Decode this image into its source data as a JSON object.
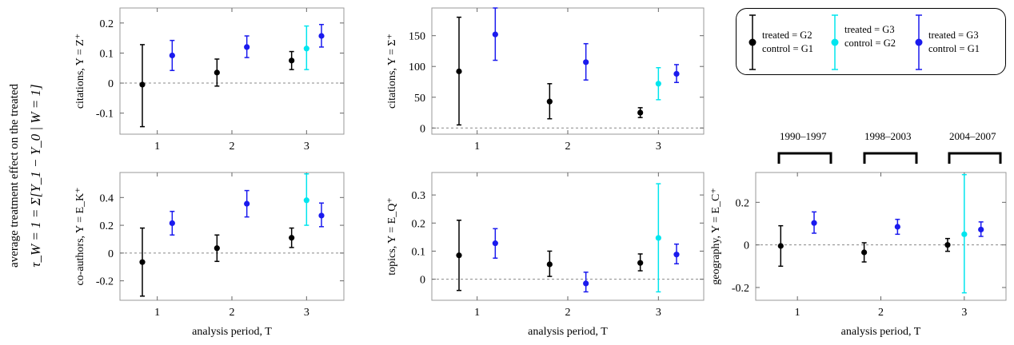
{
  "overall_ylabel_main": "average treatment effect on the treated",
  "overall_ylabel_formula": "τ_W = 1 = Σ[Y_1 − Y_0 | W = 1]",
  "legend": {
    "entries": [
      {
        "line1": "treated = G2",
        "line2": "control = G1",
        "color": "#000000"
      },
      {
        "line1": "treated = G3",
        "line2": "control = G2",
        "color": "#00e5ee"
      },
      {
        "line1": "treated = G3",
        "line2": "control = G1",
        "color": "#1a1aee"
      }
    ]
  },
  "periods": [
    {
      "label": "1990–1997"
    },
    {
      "label": "1998–2003"
    },
    {
      "label": "2004–2007"
    }
  ],
  "colors": {
    "G2vG1": "#000000",
    "G3vG2": "#00e5ee",
    "G3vG1": "#1a1aee",
    "zero_line": "#888888"
  },
  "chart_data": [
    {
      "type": "scatter",
      "ylabel": "citations, Y = Z⁺",
      "xlabel": "",
      "xticks": [
        1,
        2,
        3
      ],
      "yticks": [
        -0.1,
        0,
        0.1,
        0.2
      ],
      "ytick_labels": [
        "-0.1",
        "0",
        "0.1",
        "0.2"
      ],
      "xlim": [
        0.5,
        3.5
      ],
      "ylim": [
        -0.17,
        0.25
      ],
      "series": [
        {
          "key": "G2vG1",
          "points": [
            {
              "x": 0.8,
              "y": -0.005,
              "lo": -0.145,
              "hi": 0.128
            },
            {
              "x": 1.8,
              "y": 0.035,
              "lo": -0.01,
              "hi": 0.08
            },
            {
              "x": 2.8,
              "y": 0.075,
              "lo": 0.045,
              "hi": 0.105
            }
          ]
        },
        {
          "key": "G3vG2",
          "points": [
            {
              "x": 3.0,
              "y": 0.115,
              "lo": 0.045,
              "hi": 0.19
            }
          ]
        },
        {
          "key": "G3vG1",
          "points": [
            {
              "x": 1.2,
              "y": 0.092,
              "lo": 0.042,
              "hi": 0.142
            },
            {
              "x": 2.2,
              "y": 0.12,
              "lo": 0.085,
              "hi": 0.157
            },
            {
              "x": 3.2,
              "y": 0.157,
              "lo": 0.12,
              "hi": 0.195
            }
          ]
        }
      ]
    },
    {
      "type": "scatter",
      "ylabel": "citations, Y = Σ⁺",
      "xlabel": "",
      "xticks": [
        1,
        2,
        3
      ],
      "yticks": [
        0,
        50,
        100,
        150
      ],
      "ytick_labels": [
        "0",
        "50",
        "100",
        "150"
      ],
      "xlim": [
        0.5,
        3.5
      ],
      "ylim": [
        -10,
        195
      ],
      "series": [
        {
          "key": "G2vG1",
          "points": [
            {
              "x": 0.8,
              "y": 92,
              "lo": 5,
              "hi": 180
            },
            {
              "x": 1.8,
              "y": 43,
              "lo": 15,
              "hi": 72
            },
            {
              "x": 2.8,
              "y": 25,
              "lo": 17,
              "hi": 33
            }
          ]
        },
        {
          "key": "G3vG2",
          "points": [
            {
              "x": 3.0,
              "y": 72,
              "lo": 46,
              "hi": 98
            }
          ]
        },
        {
          "key": "G3vG1",
          "points": [
            {
              "x": 1.2,
              "y": 152,
              "lo": 110,
              "hi": 195
            },
            {
              "x": 2.2,
              "y": 107,
              "lo": 78,
              "hi": 137
            },
            {
              "x": 3.2,
              "y": 88,
              "lo": 74,
              "hi": 103
            }
          ]
        }
      ]
    },
    {
      "type": "scatter",
      "ylabel": "co-authors, Y = E_K⁺",
      "xlabel": "analysis period, T",
      "xticks": [
        1,
        2,
        3
      ],
      "yticks": [
        -0.2,
        0,
        0.2,
        0.4
      ],
      "ytick_labels": [
        "-0.2",
        "0",
        "0.2",
        "0.4"
      ],
      "xlim": [
        0.5,
        3.5
      ],
      "ylim": [
        -0.34,
        0.58
      ],
      "series": [
        {
          "key": "G2vG1",
          "points": [
            {
              "x": 0.8,
              "y": -0.065,
              "lo": -0.31,
              "hi": 0.18
            },
            {
              "x": 1.8,
              "y": 0.035,
              "lo": -0.06,
              "hi": 0.13
            },
            {
              "x": 2.8,
              "y": 0.11,
              "lo": 0.04,
              "hi": 0.18
            }
          ]
        },
        {
          "key": "G3vG2",
          "points": [
            {
              "x": 3.0,
              "y": 0.38,
              "lo": 0.2,
              "hi": 0.57
            }
          ]
        },
        {
          "key": "G3vG1",
          "points": [
            {
              "x": 1.2,
              "y": 0.215,
              "lo": 0.13,
              "hi": 0.3
            },
            {
              "x": 2.2,
              "y": 0.355,
              "lo": 0.26,
              "hi": 0.45
            },
            {
              "x": 3.2,
              "y": 0.27,
              "lo": 0.19,
              "hi": 0.36
            }
          ]
        }
      ]
    },
    {
      "type": "scatter",
      "ylabel": "topics, Y = E_Q⁺",
      "xlabel": "analysis period, T",
      "xticks": [
        1,
        2,
        3
      ],
      "yticks": [
        0,
        0.1,
        0.2,
        0.3
      ],
      "ytick_labels": [
        "0",
        "0.1",
        "0.2",
        "0.3"
      ],
      "xlim": [
        0.5,
        3.5
      ],
      "ylim": [
        -0.075,
        0.38
      ],
      "series": [
        {
          "key": "G2vG1",
          "points": [
            {
              "x": 0.8,
              "y": 0.085,
              "lo": -0.04,
              "hi": 0.21
            },
            {
              "x": 1.8,
              "y": 0.053,
              "lo": 0.01,
              "hi": 0.1
            },
            {
              "x": 2.8,
              "y": 0.058,
              "lo": 0.03,
              "hi": 0.09
            }
          ]
        },
        {
          "key": "G3vG2",
          "points": [
            {
              "x": 3.0,
              "y": 0.147,
              "lo": -0.045,
              "hi": 0.34
            }
          ]
        },
        {
          "key": "G3vG1",
          "points": [
            {
              "x": 1.2,
              "y": 0.128,
              "lo": 0.075,
              "hi": 0.18
            },
            {
              "x": 2.2,
              "y": -0.015,
              "lo": -0.045,
              "hi": 0.025
            },
            {
              "x": 3.2,
              "y": 0.088,
              "lo": 0.055,
              "hi": 0.125
            }
          ]
        }
      ]
    },
    {
      "type": "scatter",
      "ylabel": "geography, Y = E_C⁺",
      "xlabel": "analysis period, T",
      "xticks": [
        1,
        2,
        3
      ],
      "yticks": [
        -0.2,
        0,
        0.2
      ],
      "ytick_labels": [
        "-0.2",
        "0",
        "0.2"
      ],
      "xlim": [
        0.5,
        3.5
      ],
      "ylim": [
        -0.26,
        0.34
      ],
      "series": [
        {
          "key": "G2vG1",
          "points": [
            {
              "x": 0.8,
              "y": -0.005,
              "lo": -0.1,
              "hi": 0.09
            },
            {
              "x": 1.8,
              "y": -0.035,
              "lo": -0.08,
              "hi": 0.01
            },
            {
              "x": 2.8,
              "y": 0.0,
              "lo": -0.03,
              "hi": 0.03
            }
          ]
        },
        {
          "key": "G3vG2",
          "points": [
            {
              "x": 3.0,
              "y": 0.05,
              "lo": -0.225,
              "hi": 0.33
            }
          ]
        },
        {
          "key": "G3vG1",
          "points": [
            {
              "x": 1.2,
              "y": 0.103,
              "lo": 0.055,
              "hi": 0.155
            },
            {
              "x": 2.2,
              "y": 0.085,
              "lo": 0.05,
              "hi": 0.12
            },
            {
              "x": 3.2,
              "y": 0.072,
              "lo": 0.04,
              "hi": 0.108
            }
          ]
        }
      ]
    }
  ]
}
